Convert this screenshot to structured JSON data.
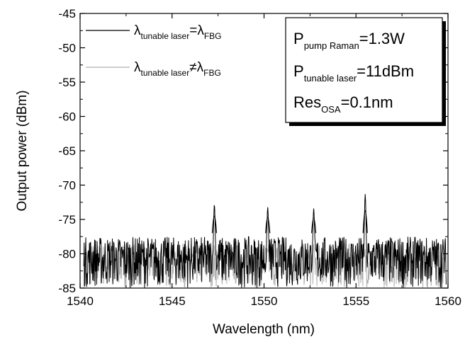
{
  "chart_data": {
    "type": "line",
    "xlabel": "Wavelength (nm)",
    "ylabel": "Output power (dBm)",
    "xlim": [
      1540,
      1560
    ],
    "ylim": [
      -85,
      -45
    ],
    "x_ticks": [
      1540,
      1545,
      1550,
      1555,
      1560
    ],
    "y_ticks": [
      -85,
      -80,
      -75,
      -70,
      -65,
      -60,
      -55,
      -50,
      -45
    ],
    "x_tick_labels": [
      "1540",
      "1545",
      "1550",
      "1555",
      "1560"
    ],
    "y_tick_labels": [
      "-85",
      "-80",
      "-75",
      "-70",
      "-65",
      "-60",
      "-55",
      "-50",
      "-45"
    ],
    "grid": false,
    "legend_position": "top-left",
    "series": [
      {
        "name": "λtunable laser=λFBG",
        "name_parts": {
          "lambda": "λ",
          "sub1": "tunable laser",
          "op": "=",
          "lambda2": "λ",
          "sub2": "FBG"
        },
        "color": "#000000",
        "noise_floor_range": [
          -85,
          -77.5
        ],
        "peaks": [
          {
            "x": 1547.3,
            "y": -72.8
          },
          {
            "x": 1550.2,
            "y": -73.2
          },
          {
            "x": 1552.7,
            "y": -73.4
          },
          {
            "x": 1555.5,
            "y": -71.3
          }
        ]
      },
      {
        "name": "λtunable laser≠λFBG",
        "name_parts": {
          "lambda": "λ",
          "sub1": "tunable laser",
          "op": "≠",
          "lambda2": "λ",
          "sub2": "FBG"
        },
        "color": "#b0b0b0",
        "noise_floor_range": [
          -85,
          -78.5
        ],
        "peaks": []
      }
    ],
    "annotation": {
      "lines": [
        {
          "main": "P",
          "sub": "pump Raman",
          "tail": "=1.3W"
        },
        {
          "main": "P",
          "sub": "tunable laser",
          "tail": "=11dBm"
        },
        {
          "main": "Res",
          "sub": "OSA",
          "tail": "=0.1nm"
        }
      ],
      "position": "top-right"
    }
  }
}
